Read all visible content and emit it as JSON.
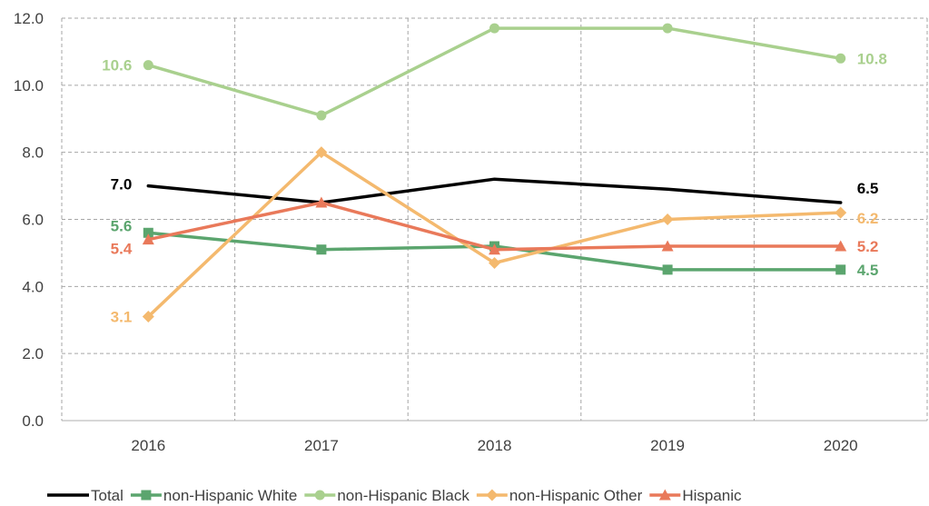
{
  "chart_data": {
    "type": "line",
    "categories": [
      "2016",
      "2017",
      "2018",
      "2019",
      "2020"
    ],
    "ylim": [
      0,
      12
    ],
    "yticks": [
      "0.0",
      "2.0",
      "4.0",
      "6.0",
      "8.0",
      "10.0",
      "12.0"
    ],
    "grid": true,
    "legend_position": "bottom",
    "series": [
      {
        "name": "Total",
        "color": "#000000",
        "marker": "none",
        "values": [
          7.0,
          6.5,
          7.2,
          6.9,
          6.5
        ],
        "labels": [
          {
            "index": 0,
            "text": "7.0",
            "side": "left"
          },
          {
            "index": 4,
            "text": "6.5",
            "side": "right"
          }
        ]
      },
      {
        "name": "non-Hispanic White",
        "color": "#5BA56E",
        "marker": "square",
        "values": [
          5.6,
          5.1,
          5.2,
          4.5,
          4.5
        ],
        "labels": [
          {
            "index": 0,
            "text": "5.6",
            "side": "left"
          },
          {
            "index": 4,
            "text": "4.5",
            "side": "right"
          }
        ]
      },
      {
        "name": "non-Hispanic Black",
        "color": "#A9D08E",
        "marker": "circle",
        "values": [
          10.6,
          9.1,
          11.7,
          11.7,
          10.8
        ],
        "labels": [
          {
            "index": 0,
            "text": "10.6",
            "side": "left"
          },
          {
            "index": 4,
            "text": "10.8",
            "side": "right"
          }
        ]
      },
      {
        "name": "non-Hispanic Other",
        "color": "#F4B96E",
        "marker": "diamond",
        "values": [
          3.1,
          8.0,
          4.7,
          6.0,
          6.2
        ],
        "labels": [
          {
            "index": 0,
            "text": "3.1",
            "side": "left"
          },
          {
            "index": 4,
            "text": "6.2",
            "side": "right"
          }
        ]
      },
      {
        "name": "Hispanic",
        "color": "#E9795A",
        "marker": "triangle",
        "values": [
          5.4,
          6.5,
          5.1,
          5.2,
          5.2
        ],
        "labels": [
          {
            "index": 0,
            "text": "5.4",
            "side": "left"
          },
          {
            "index": 4,
            "text": "5.2",
            "side": "right"
          }
        ]
      }
    ]
  }
}
